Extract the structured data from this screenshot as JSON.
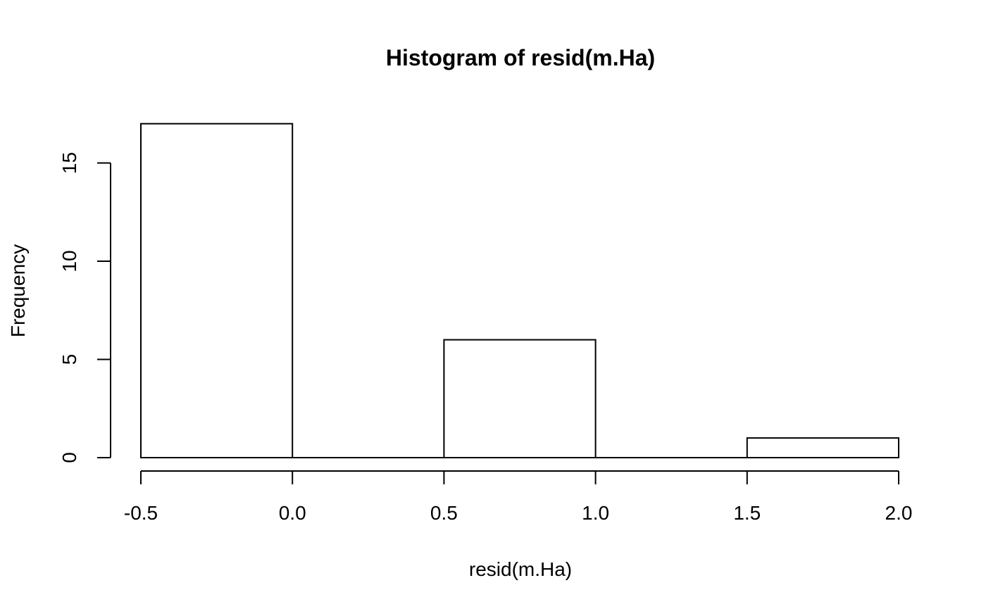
{
  "chart_data": {
    "type": "bar",
    "subtype": "histogram",
    "title": "Histogram of resid(m.Ha)",
    "xlabel": "resid(m.Ha)",
    "ylabel": "Frequency",
    "bins": [
      {
        "start": -0.5,
        "end": 0.0,
        "count": 17
      },
      {
        "start": 0.0,
        "end": 0.5,
        "count": 0
      },
      {
        "start": 0.5,
        "end": 1.0,
        "count": 6
      },
      {
        "start": 1.0,
        "end": 1.5,
        "count": 0
      },
      {
        "start": 1.5,
        "end": 2.0,
        "count": 1
      }
    ],
    "xlim": [
      -0.5,
      2.0
    ],
    "ylim": [
      0,
      17
    ],
    "x_ticks": [
      {
        "value": -0.5,
        "label": "-0.5"
      },
      {
        "value": 0.0,
        "label": "0.0"
      },
      {
        "value": 0.5,
        "label": "0.5"
      },
      {
        "value": 1.0,
        "label": "1.0"
      },
      {
        "value": 1.5,
        "label": "1.5"
      },
      {
        "value": 2.0,
        "label": "2.0"
      }
    ],
    "y_ticks": [
      {
        "value": 0,
        "label": "0"
      },
      {
        "value": 5,
        "label": "5"
      },
      {
        "value": 10,
        "label": "10"
      },
      {
        "value": 15,
        "label": "15"
      }
    ],
    "bar_fill": "#ffffff",
    "bar_stroke": "#000000",
    "grid": false,
    "legend": "none"
  }
}
